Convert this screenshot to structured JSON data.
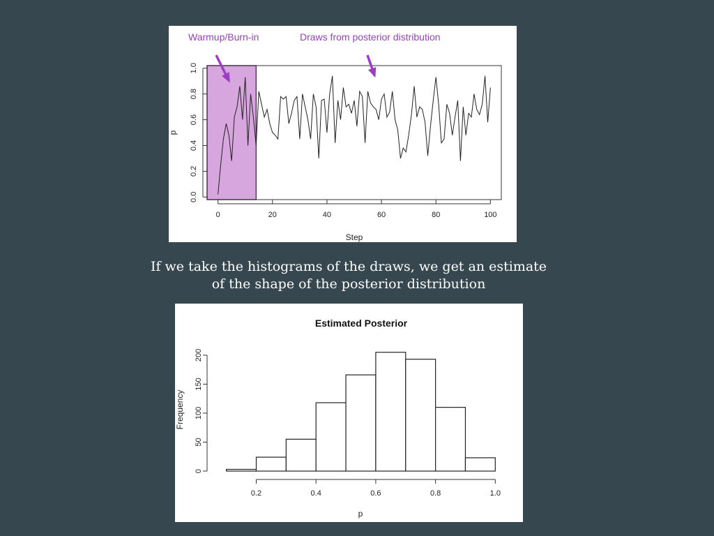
{
  "caption": {
    "line1": "If we take the histograms of the draws, we get an estimate",
    "line2": "of the shape of the posterior distribution"
  },
  "colors": {
    "background": "#37474f",
    "burnin_fill": "#d8a6df",
    "annotation": "#9b3fc0",
    "line": "#222222"
  },
  "chart_data": [
    {
      "type": "line",
      "xlabel": "Step",
      "ylabel": "p",
      "xlim": [
        -4,
        104
      ],
      "ylim": [
        -0.02,
        1.02
      ],
      "xticks": [
        "0",
        "20",
        "40",
        "60",
        "80",
        "100"
      ],
      "yticks": [
        "0.0",
        "0.2",
        "0.4",
        "0.6",
        "0.8",
        "1.0"
      ],
      "burnin_end": 14,
      "annotations": [
        {
          "label": "Warmup/Burn-in",
          "target_x": 3,
          "target_y": 0.88
        },
        {
          "label": "Draws from posterior distribution",
          "target_x": 58,
          "target_y": 0.92
        }
      ],
      "series": [
        {
          "x": [
            0,
            1,
            2,
            3,
            4,
            5,
            6,
            7,
            8,
            9,
            10,
            11,
            12,
            13,
            14,
            15,
            16,
            17,
            18,
            19,
            20,
            21,
            22,
            23,
            24,
            25,
            26,
            27,
            28,
            29,
            30,
            31,
            32,
            33,
            34,
            35,
            36,
            37,
            38,
            39,
            40,
            41,
            42,
            43,
            44,
            45,
            46,
            47,
            48,
            49,
            50,
            51,
            52,
            53,
            54,
            55,
            56,
            57,
            58,
            59,
            60,
            61,
            62,
            63,
            64,
            65,
            66,
            67,
            68,
            69,
            70,
            71,
            72,
            73,
            74,
            75,
            76,
            77,
            78,
            79,
            80,
            81,
            82,
            83,
            84,
            85,
            86,
            87,
            88,
            89,
            90,
            91,
            92,
            93,
            94,
            95,
            96,
            97,
            98,
            99,
            100
          ],
          "y": [
            0.02,
            0.25,
            0.45,
            0.57,
            0.48,
            0.28,
            0.62,
            0.7,
            0.86,
            0.6,
            0.93,
            0.4,
            0.8,
            0.62,
            0.4,
            0.82,
            0.72,
            0.62,
            0.68,
            0.57,
            0.5,
            0.48,
            0.45,
            0.78,
            0.76,
            0.78,
            0.57,
            0.65,
            0.75,
            0.78,
            0.45,
            0.8,
            0.7,
            0.6,
            0.45,
            0.8,
            0.7,
            0.3,
            0.75,
            0.76,
            0.5,
            0.8,
            0.94,
            0.42,
            0.75,
            0.6,
            0.85,
            0.7,
            0.72,
            0.65,
            0.75,
            0.55,
            0.82,
            0.78,
            0.42,
            0.82,
            0.73,
            0.7,
            0.68,
            0.6,
            0.76,
            0.8,
            0.62,
            0.66,
            0.82,
            0.6,
            0.52,
            0.3,
            0.38,
            0.35,
            0.48,
            0.64,
            0.86,
            0.62,
            0.7,
            0.68,
            0.58,
            0.32,
            0.55,
            0.75,
            0.93,
            0.72,
            0.42,
            0.45,
            0.72,
            0.65,
            0.48,
            0.62,
            0.75,
            0.28,
            0.7,
            0.48,
            0.65,
            0.62,
            0.8,
            0.68,
            0.64,
            0.72,
            0.94,
            0.58,
            0.85
          ]
        }
      ]
    },
    {
      "type": "bar",
      "title": "Estimated Posterior",
      "xlabel": "p",
      "ylabel": "Frequency",
      "bins": [
        [
          0.1,
          0.2
        ],
        [
          0.2,
          0.3
        ],
        [
          0.3,
          0.4
        ],
        [
          0.4,
          0.5
        ],
        [
          0.5,
          0.6
        ],
        [
          0.6,
          0.7
        ],
        [
          0.7,
          0.8
        ],
        [
          0.8,
          0.9
        ],
        [
          0.9,
          1.0
        ]
      ],
      "values": [
        3,
        24,
        55,
        118,
        166,
        205,
        193,
        110,
        23
      ],
      "xticks": [
        "0.2",
        "0.4",
        "0.6",
        "0.8",
        "1.0"
      ],
      "yticks": [
        "0",
        "50",
        "100",
        "150",
        "200"
      ],
      "xlim": [
        0.07,
        1.03
      ],
      "ylim": [
        0,
        220
      ]
    }
  ]
}
